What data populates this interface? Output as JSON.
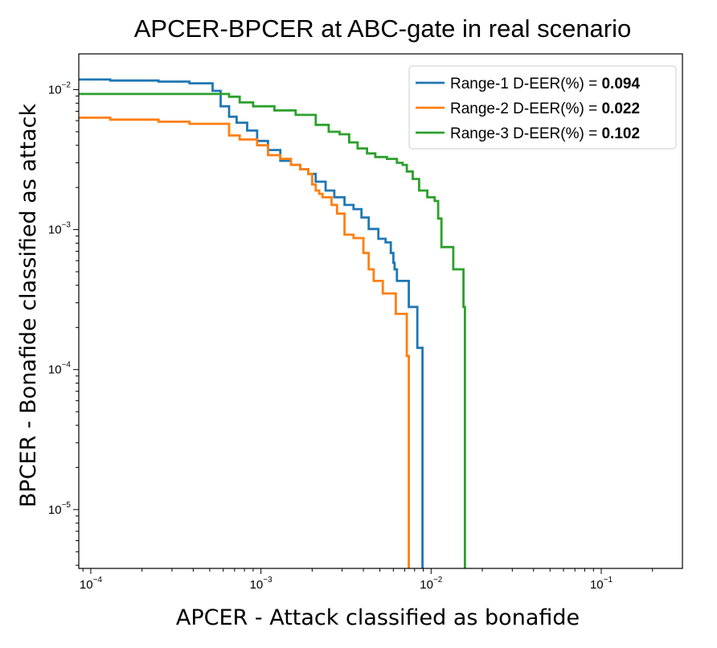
{
  "chart_data": {
    "type": "line",
    "title": "APCER-BPCER at ABC-gate in real scenario",
    "xlabel": "APCER - Attack classified as bonafide",
    "ylabel": "BPCER - Bonafide classified as attack",
    "xscale": "log",
    "yscale": "log",
    "xlim": [
      8.5e-05,
      0.3
    ],
    "ylim": [
      3.8e-06,
      0.018
    ],
    "grid": false,
    "legend_position": "top-right",
    "x_ticks": [
      {
        "base": "10",
        "exp": "−4",
        "value": 0.0001
      },
      {
        "base": "10",
        "exp": "−3",
        "value": 0.001
      },
      {
        "base": "10",
        "exp": "−2",
        "value": 0.01
      },
      {
        "base": "10",
        "exp": "−1",
        "value": 0.1
      }
    ],
    "y_ticks": [
      {
        "base": "10",
        "exp": "−2",
        "value": 0.01
      },
      {
        "base": "10",
        "exp": "−3",
        "value": 0.001
      },
      {
        "base": "10",
        "exp": "−4",
        "value": 0.0001
      },
      {
        "base": "10",
        "exp": "−5",
        "value": 1e-05
      }
    ],
    "series": [
      {
        "name": "Range-1",
        "legend_prefix": "Range-1 D-EER(%) = ",
        "legend_value": "0.094",
        "color": "#1f77b4",
        "x": [
          8.5e-05,
          0.00013,
          0.00025,
          0.00038,
          0.00052,
          0.00058,
          0.00065,
          0.00072,
          0.00083,
          0.00095,
          0.0011,
          0.0013,
          0.0015,
          0.0017,
          0.0019,
          0.0021,
          0.0024,
          0.0027,
          0.0031,
          0.0035,
          0.0039,
          0.0043,
          0.0049,
          0.0054,
          0.0058,
          0.006,
          0.0061,
          0.0063,
          0.0067,
          0.0074,
          0.0083,
          0.0087,
          0.0089
        ],
        "y": [
          0.0118,
          0.0116,
          0.0114,
          0.0111,
          0.0098,
          0.0076,
          0.0064,
          0.0058,
          0.0051,
          0.0043,
          0.0037,
          0.0031,
          0.0029,
          0.0027,
          0.0025,
          0.0022,
          0.0019,
          0.0017,
          0.0015,
          0.0014,
          0.00122,
          0.00101,
          0.00086,
          0.00081,
          0.00068,
          0.00058,
          0.00052,
          0.00043,
          0.00043,
          0.00028,
          0.000143,
          0.000143,
          3.8e-06
        ]
      },
      {
        "name": "Range-2",
        "legend_prefix": "Range-2 D-EER(%) = ",
        "legend_value": "0.022",
        "color": "#ff7f0e",
        "x": [
          8.5e-05,
          0.00013,
          0.00025,
          0.00038,
          0.00065,
          0.00075,
          0.00095,
          0.0011,
          0.0013,
          0.0015,
          0.0017,
          0.0019,
          0.002,
          0.0021,
          0.0022,
          0.0023,
          0.0026,
          0.0028,
          0.0031,
          0.0035,
          0.004,
          0.0043,
          0.0046,
          0.0052,
          0.0062,
          0.0068,
          0.0072,
          0.0074
        ],
        "y": [
          0.0063,
          0.0061,
          0.0059,
          0.0057,
          0.0047,
          0.0044,
          0.004,
          0.0034,
          0.0032,
          0.0029,
          0.0027,
          0.0025,
          0.0021,
          0.0019,
          0.0018,
          0.0017,
          0.0015,
          0.0013,
          0.00092,
          0.00087,
          0.00068,
          0.00052,
          0.00043,
          0.00035,
          0.00025,
          0.00025,
          0.000125,
          3.8e-06
        ]
      },
      {
        "name": "Range-3",
        "legend_prefix": "Range-3 D-EER(%) = ",
        "legend_value": "0.102",
        "color": "#2ca02c",
        "x": [
          8.5e-05,
          0.00038,
          0.00055,
          0.00065,
          0.00075,
          0.0009,
          0.0012,
          0.0016,
          0.0021,
          0.0025,
          0.0029,
          0.0033,
          0.0037,
          0.0042,
          0.0047,
          0.0055,
          0.0063,
          0.0068,
          0.0072,
          0.0078,
          0.0085,
          0.0095,
          0.0105,
          0.011,
          0.0115,
          0.0135,
          0.0155,
          0.0158
        ],
        "y": [
          0.0093,
          0.0093,
          0.0093,
          0.0089,
          0.0081,
          0.0076,
          0.0071,
          0.0066,
          0.0056,
          0.005,
          0.0048,
          0.0042,
          0.0038,
          0.0035,
          0.0033,
          0.0032,
          0.003,
          0.0029,
          0.0026,
          0.0023,
          0.0019,
          0.0017,
          0.0016,
          0.0012,
          0.00075,
          0.00052,
          0.00028,
          3.8e-06
        ]
      }
    ]
  }
}
